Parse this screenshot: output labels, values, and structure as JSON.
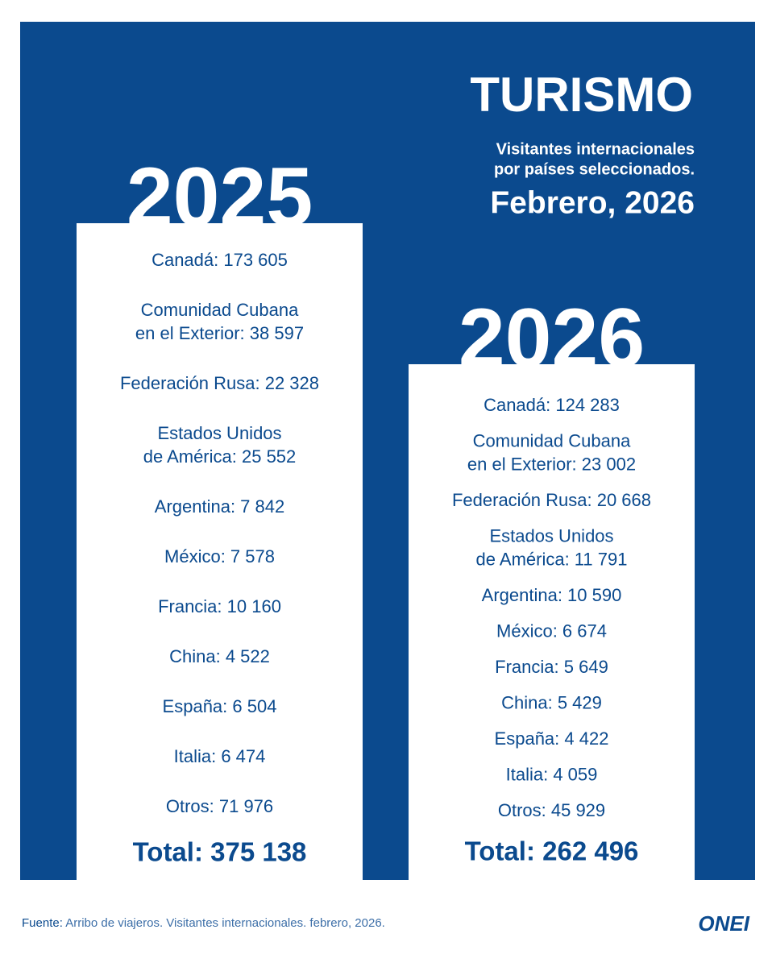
{
  "header": {
    "title": "TURISMO",
    "subtitle": [
      "Visitantes internacionales",
      "por países seleccionados."
    ],
    "period": "Febrero, 2026"
  },
  "columns": [
    {
      "year": "2025",
      "entries": [
        [
          "Canadá: 173 605"
        ],
        [
          "Comunidad Cubana",
          "en el Exterior: 38 597"
        ],
        [
          "Federación Rusa: 22 328"
        ],
        [
          "Estados Unidos",
          "de América: 25 552"
        ],
        [
          "Argentina: 7 842"
        ],
        [
          "México: 7 578"
        ],
        [
          "Francia: 10 160"
        ],
        [
          "China: 4 522"
        ],
        [
          "España: 6 504"
        ],
        [
          "Italia: 6 474"
        ],
        [
          "Otros: 71 976"
        ]
      ],
      "total": "Total: 375 138"
    },
    {
      "year": "2026",
      "entries": [
        [
          "Canadá: 124 283"
        ],
        [
          "Comunidad Cubana",
          "en el Exterior: 23 002"
        ],
        [
          "Federación Rusa: 20 668"
        ],
        [
          "Estados Unidos",
          "de América: 11 791"
        ],
        [
          "Argentina: 10 590"
        ],
        [
          "México: 6 674"
        ],
        [
          "Francia: 5 649"
        ],
        [
          "China: 5 429"
        ],
        [
          "España: 4 422"
        ],
        [
          "Italia: 4 059"
        ],
        [
          "Otros: 45 929"
        ]
      ],
      "total": "Total: 262 496"
    }
  ],
  "footer": {
    "source_label": "Fuente:",
    "source": "Arribo de viajeros. Visitantes internacionales. febrero, 2026.",
    "logo": "ONEI"
  }
}
